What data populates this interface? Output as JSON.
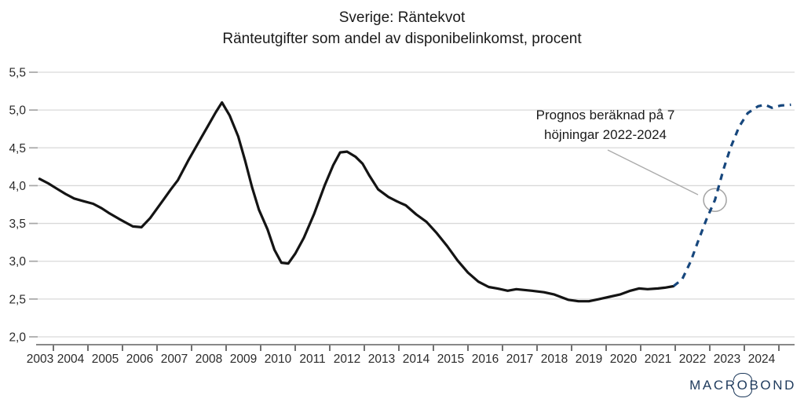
{
  "chart_data": {
    "type": "line",
    "title": "Sverige: Räntekvot",
    "subtitle": "Ränteutgifter som andel av disponibelinkomst, procent",
    "grid": "horizontal",
    "legend": "none",
    "x_axis": {
      "labels": [
        "2003",
        "2004",
        "2005",
        "2006",
        "2007",
        "2008",
        "2009",
        "2010",
        "2011",
        "2012",
        "2013",
        "2014",
        "2015",
        "2016",
        "2017",
        "2018",
        "2019",
        "2020",
        "2021",
        "2022",
        "2023",
        "2024"
      ],
      "range": [
        2003.0,
        2025.0
      ]
    },
    "y_axis": {
      "tick_values": [
        5.5,
        5.0,
        4.5,
        4.0,
        3.5,
        3.0,
        2.5,
        2.0
      ],
      "tick_labels": [
        "5,5",
        "5,0",
        "4,5",
        "4,0",
        "3,5",
        "3,0",
        "2,5",
        "2,0"
      ],
      "range": [
        2.0,
        5.5
      ]
    },
    "series": [
      {
        "id": "history-solid",
        "style": "solid",
        "color": "#141414",
        "points": [
          [
            2003.1,
            4.09
          ],
          [
            2003.35,
            4.03
          ],
          [
            2003.6,
            3.96
          ],
          [
            2003.85,
            3.89
          ],
          [
            2004.1,
            3.83
          ],
          [
            2004.4,
            3.79
          ],
          [
            2004.65,
            3.76
          ],
          [
            2004.9,
            3.7
          ],
          [
            2005.1,
            3.64
          ],
          [
            2005.4,
            3.56
          ],
          [
            2005.6,
            3.51
          ],
          [
            2005.8,
            3.46
          ],
          [
            2006.05,
            3.45
          ],
          [
            2006.3,
            3.57
          ],
          [
            2006.65,
            3.79
          ],
          [
            2006.9,
            3.95
          ],
          [
            2007.1,
            4.07
          ],
          [
            2007.4,
            4.33
          ],
          [
            2007.7,
            4.57
          ],
          [
            2008.0,
            4.81
          ],
          [
            2008.2,
            4.97
          ],
          [
            2008.38,
            5.1
          ],
          [
            2008.6,
            4.93
          ],
          [
            2008.85,
            4.65
          ],
          [
            2009.05,
            4.33
          ],
          [
            2009.25,
            3.98
          ],
          [
            2009.45,
            3.68
          ],
          [
            2009.7,
            3.42
          ],
          [
            2009.9,
            3.15
          ],
          [
            2010.1,
            2.98
          ],
          [
            2010.3,
            2.97
          ],
          [
            2010.5,
            3.1
          ],
          [
            2010.75,
            3.31
          ],
          [
            2011.05,
            3.63
          ],
          [
            2011.35,
            4.0
          ],
          [
            2011.6,
            4.27
          ],
          [
            2011.8,
            4.44
          ],
          [
            2012.0,
            4.45
          ],
          [
            2012.25,
            4.38
          ],
          [
            2012.45,
            4.29
          ],
          [
            2012.65,
            4.13
          ],
          [
            2012.9,
            3.95
          ],
          [
            2013.2,
            3.85
          ],
          [
            2013.45,
            3.79
          ],
          [
            2013.7,
            3.74
          ],
          [
            2014.0,
            3.62
          ],
          [
            2014.3,
            3.52
          ],
          [
            2014.6,
            3.37
          ],
          [
            2014.9,
            3.2
          ],
          [
            2015.2,
            3.01
          ],
          [
            2015.5,
            2.85
          ],
          [
            2015.8,
            2.73
          ],
          [
            2016.1,
            2.66
          ],
          [
            2016.35,
            2.64
          ],
          [
            2016.65,
            2.61
          ],
          [
            2016.9,
            2.63
          ],
          [
            2017.35,
            2.61
          ],
          [
            2017.7,
            2.59
          ],
          [
            2018.0,
            2.56
          ],
          [
            2018.4,
            2.49
          ],
          [
            2018.7,
            2.47
          ],
          [
            2019.0,
            2.47
          ],
          [
            2019.3,
            2.5
          ],
          [
            2019.6,
            2.53
          ],
          [
            2019.9,
            2.56
          ],
          [
            2020.2,
            2.61
          ],
          [
            2020.45,
            2.64
          ],
          [
            2020.7,
            2.63
          ],
          [
            2021.0,
            2.64
          ],
          [
            2021.2,
            2.65
          ],
          [
            2021.45,
            2.67
          ]
        ]
      },
      {
        "id": "forecast-dashed",
        "style": "dashed",
        "color": "#17477d",
        "points": [
          [
            2021.45,
            2.67
          ],
          [
            2021.7,
            2.76
          ],
          [
            2021.95,
            3.0
          ],
          [
            2022.15,
            3.25
          ],
          [
            2022.4,
            3.55
          ],
          [
            2022.65,
            3.81
          ],
          [
            2022.9,
            4.22
          ],
          [
            2023.1,
            4.5
          ],
          [
            2023.35,
            4.78
          ],
          [
            2023.6,
            4.96
          ],
          [
            2023.9,
            5.05
          ],
          [
            2024.1,
            5.07
          ],
          [
            2024.3,
            5.03
          ],
          [
            2024.55,
            5.06
          ],
          [
            2024.85,
            5.07
          ]
        ]
      }
    ],
    "annotation": {
      "line1": "Prognos beräknad på 7",
      "line2": "höjningar 2022-2024",
      "circled_point": [
        2022.65,
        3.81
      ]
    }
  },
  "logo": {
    "part1": "MACR",
    "part2": "O",
    "part3": "BOND",
    "color": "#1e3a5c"
  },
  "colors": {
    "gridline": "#d9d9d9",
    "y_tick": "#a6a6a6",
    "x_axis_line": "#777777",
    "x_tick": "#333333",
    "tick_label": "#2b2b2b",
    "leader_line": "#ababab",
    "circle": "#a3a3a3"
  }
}
